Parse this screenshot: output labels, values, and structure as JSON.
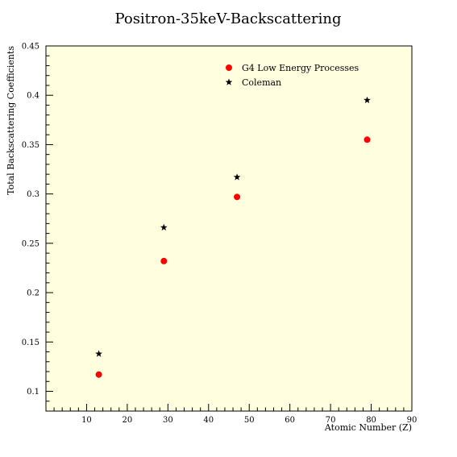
{
  "chart_data": {
    "type": "scatter",
    "title": "Positron-35keV-Backscattering",
    "xlabel": "Atomic Number (Z)",
    "ylabel": "Total Backscattering Coefficients",
    "xlim": [
      0,
      90
    ],
    "ylim": [
      0.08,
      0.45
    ],
    "xticks": [
      10,
      20,
      30,
      40,
      50,
      60,
      70,
      80,
      90
    ],
    "yticks": [
      0.1,
      0.15,
      0.2,
      0.25,
      0.3,
      0.35,
      0.4,
      0.45
    ],
    "ytick_labels": [
      "0.1",
      "0.15",
      "0.2",
      "0.25",
      "0.3",
      "0.35",
      "0.4",
      "0.45"
    ],
    "grid": false,
    "legend_position": "top-right",
    "background_color": "#ffffe0",
    "series": [
      {
        "name": "G4 Low Energy Processes",
        "marker": "circle",
        "color": "#ff0000",
        "x": [
          13,
          29,
          47,
          79
        ],
        "y": [
          0.117,
          0.232,
          0.297,
          0.355
        ]
      },
      {
        "name": "Coleman",
        "marker": "star",
        "color": "#000000",
        "x": [
          13,
          29,
          47,
          79
        ],
        "y": [
          0.138,
          0.266,
          0.317,
          0.395
        ]
      }
    ]
  }
}
